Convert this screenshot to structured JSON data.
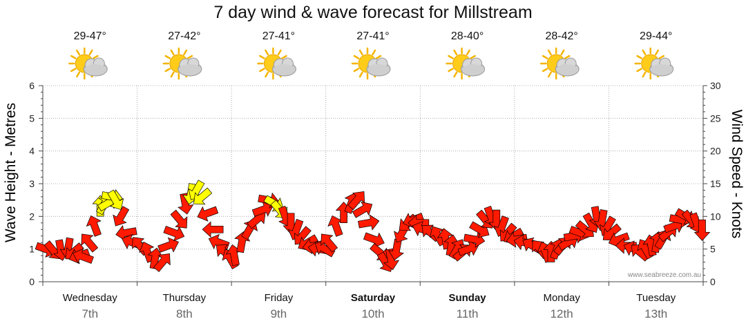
{
  "chart_data": {
    "type": "line",
    "title": "7 day wind & wave forecast for Millstream",
    "ylabel_left": "Wave Height - Metres",
    "ylabel_right": "Wind Speed - Knots",
    "ylim_left": [
      0,
      6
    ],
    "ylim_right": [
      0,
      30
    ],
    "yticks_left": [
      "0",
      "1",
      "2",
      "3",
      "4",
      "5",
      "6"
    ],
    "yticks_right": [
      "0",
      "5",
      "10",
      "15",
      "20",
      "25",
      "30"
    ],
    "grid": true,
    "days": [
      {
        "name": "Wednesday",
        "date": "7th",
        "bold": false,
        "temp": "29-47°"
      },
      {
        "name": "Thursday",
        "date": "8th",
        "bold": false,
        "temp": "27-42°"
      },
      {
        "name": "Friday",
        "date": "9th",
        "bold": false,
        "temp": "27-41°"
      },
      {
        "name": "Saturday",
        "date": "10th",
        "bold": true,
        "temp": "27-41°"
      },
      {
        "name": "Sunday",
        "date": "11th",
        "bold": true,
        "temp": "28-40°"
      },
      {
        "name": "Monday",
        "date": "12th",
        "bold": false,
        "temp": "28-42°"
      },
      {
        "name": "Tuesday",
        "date": "13th",
        "bold": false,
        "temp": "29-44°"
      }
    ],
    "weather_icon": "sun-behind-cloud-icon",
    "series": [
      {
        "axis": "right",
        "colors": {
          "normal": "#ff1a00",
          "strong": "#ffff00"
        },
        "x_day": [
          0.0,
          0.08,
          0.16,
          0.24,
          0.3,
          0.36,
          0.4,
          0.46,
          0.52,
          0.58,
          0.62,
          0.66,
          0.7,
          0.74,
          0.8,
          0.86,
          0.92,
          1.0,
          1.08,
          1.16,
          1.24,
          1.3,
          1.36,
          1.42,
          1.48,
          1.54,
          1.6,
          1.66,
          1.72,
          1.78,
          1.84,
          1.9,
          1.96,
          2.0,
          2.08,
          2.16,
          2.24,
          2.3,
          2.36,
          2.42,
          2.48,
          2.54,
          2.6,
          2.66,
          2.72,
          2.78,
          2.84,
          2.9,
          2.96,
          3.0,
          3.08,
          3.16,
          3.24,
          3.3,
          3.36,
          3.42,
          3.48,
          3.54,
          3.6,
          3.66,
          3.72,
          3.78,
          3.84,
          3.9,
          3.96,
          4.0,
          4.08,
          4.16,
          4.24,
          4.3,
          4.36,
          4.42,
          4.48,
          4.54,
          4.6,
          4.66,
          4.72,
          4.78,
          4.84,
          4.9,
          4.96,
          5.0,
          5.08,
          5.16,
          5.24,
          5.3,
          5.36,
          5.42,
          5.48,
          5.54,
          5.6,
          5.66,
          5.72,
          5.78,
          5.84,
          5.9,
          5.96,
          6.0,
          6.08,
          6.16,
          6.24,
          6.3,
          6.36,
          6.42,
          6.48,
          6.54,
          6.6,
          6.66,
          6.72,
          6.78,
          6.84,
          6.9,
          6.96
        ],
        "wind_knots": [
          5.0,
          4.8,
          4.9,
          5.2,
          4.6,
          4.0,
          3.8,
          6.0,
          8.5,
          11.5,
          11.8,
          12.0,
          13.0,
          12.5,
          10.0,
          7.5,
          6.0,
          5.5,
          4.5,
          3.5,
          3.0,
          5.5,
          7.5,
          9.5,
          12.0,
          13.5,
          14.0,
          13.0,
          10.5,
          8.0,
          6.0,
          4.5,
          3.5,
          4.0,
          6.0,
          8.0,
          9.5,
          11.0,
          12.5,
          12.0,
          11.0,
          10.0,
          9.0,
          8.0,
          7.0,
          6.0,
          5.5,
          5.0,
          5.0,
          6.0,
          8.5,
          10.5,
          12.0,
          12.5,
          11.0,
          9.0,
          6.5,
          4.5,
          3.0,
          3.5,
          5.0,
          7.5,
          9.0,
          9.5,
          9.0,
          8.0,
          7.5,
          7.0,
          6.5,
          5.5,
          5.0,
          4.5,
          5.0,
          6.5,
          8.0,
          9.5,
          10.0,
          9.5,
          8.5,
          7.5,
          7.0,
          6.5,
          6.0,
          5.5,
          5.0,
          4.5,
          4.5,
          5.0,
          5.5,
          6.0,
          7.0,
          7.5,
          8.0,
          9.0,
          10.0,
          9.5,
          8.5,
          7.5,
          6.5,
          5.5,
          5.0,
          4.5,
          5.0,
          5.5,
          6.0,
          6.5,
          7.5,
          8.5,
          9.5,
          10.0,
          9.5,
          9.0,
          8.0
        ],
        "strong_flags": [
          0,
          0,
          0,
          0,
          0,
          0,
          0,
          0,
          0,
          1,
          1,
          1,
          1,
          1,
          0,
          0,
          0,
          0,
          0,
          0,
          0,
          0,
          0,
          0,
          0,
          1,
          1,
          1,
          0,
          0,
          0,
          0,
          0,
          0,
          0,
          0,
          0,
          0,
          0,
          1,
          1,
          0,
          0,
          0,
          0,
          0,
          0,
          0,
          0,
          0,
          0,
          0,
          0,
          0,
          0,
          0,
          0,
          0,
          0,
          0,
          0,
          0,
          0,
          0,
          0,
          0,
          0,
          0,
          0,
          0,
          0,
          0,
          0,
          0,
          0,
          0,
          0,
          0,
          0,
          0,
          0,
          0,
          0,
          0,
          0,
          0,
          0,
          0,
          0,
          0,
          0,
          0,
          0,
          0,
          0,
          0,
          0,
          0,
          0,
          0,
          0,
          0,
          0,
          0,
          0,
          0,
          0,
          0,
          0,
          0,
          0,
          0,
          0
        ],
        "direction_deg": [
          20,
          50,
          80,
          100,
          140,
          160,
          200,
          230,
          250,
          270,
          300,
          330,
          10,
          60,
          120,
          170,
          200,
          230,
          250,
          280,
          310,
          340,
          20,
          50,
          80,
          100,
          120,
          140,
          160,
          180,
          200,
          220,
          240,
          260,
          280,
          300,
          320,
          340,
          10,
          30,
          50,
          70,
          90,
          110,
          130,
          150,
          170,
          190,
          210,
          230,
          250,
          270,
          290,
          310,
          330,
          350,
          20,
          40,
          60,
          80,
          100,
          120,
          140,
          160,
          180,
          200,
          220,
          240,
          260,
          280,
          300,
          320,
          340,
          10,
          30,
          50,
          70,
          90,
          110,
          130,
          150,
          170,
          190,
          210,
          230,
          250,
          270,
          290,
          310,
          330,
          350,
          20,
          40,
          60,
          80,
          100,
          120,
          140,
          160,
          180,
          200,
          220,
          240,
          260,
          280,
          300,
          320,
          340,
          10,
          30,
          50,
          70,
          90
        ]
      }
    ]
  },
  "watermark": "www.seabreeze.com.au"
}
